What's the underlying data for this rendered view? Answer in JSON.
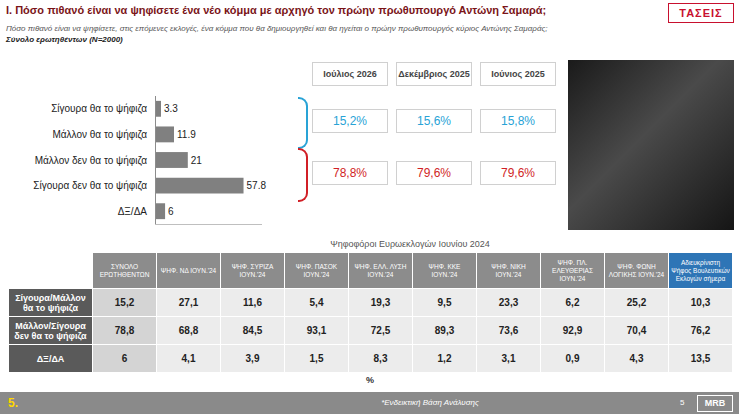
{
  "header": {
    "title": "I. Πόσο πιθανό είναι να ψηφίσετε ένα νέο κόμμα με αρχηγό τον πρώην πρωθυπουργό Αντώνη Σαμαρά;",
    "logo": "ΤΑΣΕΙΣ",
    "subtitle": "Πόσο πιθανό είναι να ψηφίσετε, στις επόμενες εκλογές, ένα κόμμα που θα δημιουργηθεί και θα ηγείται ο πρώην πρωθυπουργός κύριος Αντώνης Σαμαράς;",
    "base": "Σύνολο ερωτηθέντων (N=2000)"
  },
  "chart_data": {
    "type": "bar",
    "orientation": "horizontal",
    "categories": [
      "Σίγουρα θα το ψήφιζα",
      "Μάλλον θα το ψήφιζα",
      "Μάλλον δεν θα το ψήφιζα",
      "Σίγουρα δεν θα το ψήφιζα",
      "ΔΞ/ΔΑ"
    ],
    "values": [
      3.3,
      11.9,
      21,
      57.8,
      6
    ],
    "color": "#808080",
    "xlim": [
      0,
      70
    ],
    "data_labels": true,
    "tick_labels": "y",
    "grid": false
  },
  "trend": {
    "columns": [
      "Ιούλιος 2026",
      "Δεκέμβριος 2025",
      "Ιούνιος 2025"
    ],
    "rows": [
      {
        "color": "#29a3d6",
        "values": [
          "15,2%",
          "15,6%",
          "15,8%"
        ]
      },
      {
        "color": "#d11f26",
        "values": [
          "78,8%",
          "79,6%",
          "79,6%"
        ]
      }
    ]
  },
  "table": {
    "title": "Ψηφοφόροι Ευρωεκλογών Ιουνίου 2024",
    "columns": [
      "ΣΥΝΟΛΟ ΕΡΩΤΗΘΕΝΤΩΝ",
      "ΨΗΦ. ΝΔ ΙΟΥΝ.'24",
      "ΨΗΦ. ΣΥΡΙΖΑ ΙΟΥΝ.'24",
      "ΨΗΦ. ΠΑΣΟΚ ΙΟΥΝ.'24",
      "ΨΗΦ. ΕΛΛ. ΛΥΣΗ ΙΟΥΝ.'24",
      "ΨΗΦ. ΚΚΕ ΙΟΥΝ.'24",
      "ΨΗΦ. ΝΙΚΗ ΙΟΥΝ.'24",
      "ΨΗΦ. ΠΛ. ΕΛΕΥΘΕΡΙΑΣ ΙΟΥΝ.'24",
      "ΨΗΦ. ΦΩΝΗ ΛΟΓΙΚΗΣ ΙΟΥΝ.'24",
      "Αδιευκρίνιστη Ψήφος Βουλευτικών Εκλογών σήμερα"
    ],
    "rows": [
      {
        "label": "Σίγουρα/Μάλλον θα το ψήφιζα",
        "cells": [
          "15,2",
          "27,1",
          "11,6",
          "5,4",
          "19,3",
          "9,5",
          "23,3",
          "6,2",
          "25,2",
          "10,3"
        ]
      },
      {
        "label": "Μάλλον/Σίγουρα δεν θα το ψήφιζα",
        "cells": [
          "78,8",
          "68,8",
          "84,5",
          "93,1",
          "72,5",
          "89,3",
          "73,6",
          "92,9",
          "70,4",
          "76,2"
        ]
      },
      {
        "label": "ΔΞ/ΔΑ",
        "cells": [
          "6",
          "4,1",
          "3,9",
          "1,5",
          "8,3",
          "1,2",
          "3,1",
          "0,9",
          "4,3",
          "13,5"
        ]
      }
    ],
    "unit": "%"
  },
  "footer": {
    "section": "5.",
    "note": "*Ενδεικτική Βάση Ανάλυσης",
    "page": "5",
    "brand": "MRB"
  }
}
